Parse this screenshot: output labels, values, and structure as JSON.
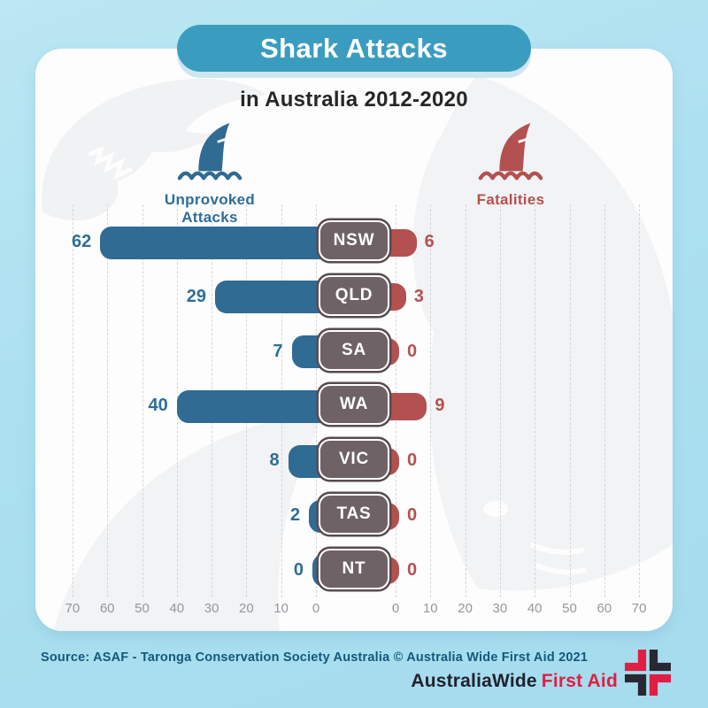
{
  "page": {
    "title_banner": "Shark Attacks",
    "subtitle": "in Australia 2012-2020",
    "source": "Source: ASAF - Taronga Conservation Society Australia © Australia Wide First Aid 2021",
    "logo": {
      "brand": "AustraliaWide",
      "accent": "First Aid"
    }
  },
  "legend": {
    "attacks_label": "Unprovoked Attacks",
    "fatalities_label": "Fatalities"
  },
  "colors": {
    "attacks_blue": "#2f6b93",
    "attacks_text_blue": "#2d6e98",
    "fatalities_red": "#b35150",
    "fatalities_text_red": "#b5514f",
    "state_box_fill": "#6e6266",
    "state_box_ring": "#584b50",
    "banner_teal": "#3a9dc0",
    "background_blue": "#ace0f0",
    "gridline_gray": "#d6d6da",
    "axis_text_gray": "#97979d",
    "source_text": "#15587c",
    "logo_dark": "#20222f",
    "logo_red": "#e01e43"
  },
  "chart_data": {
    "type": "bar",
    "variant": "diverging-horizontal",
    "title": "Shark Attacks in Australia 2012-2020",
    "categories": [
      "NSW",
      "QLD",
      "SA",
      "WA",
      "VIC",
      "TAS",
      "NT"
    ],
    "series": [
      {
        "name": "Unprovoked Attacks",
        "side": "left",
        "values": [
          62,
          29,
          7,
          40,
          8,
          2,
          0
        ]
      },
      {
        "name": "Fatalities",
        "side": "right",
        "values": [
          6,
          3,
          0,
          9,
          0,
          0,
          0
        ]
      }
    ],
    "axis": {
      "left_ticks": [
        70,
        60,
        50,
        40,
        30,
        20,
        10,
        0
      ],
      "right_ticks": [
        0,
        10,
        20,
        30,
        40,
        50,
        60,
        70
      ],
      "max": 70,
      "gridlines": "dashed-vertical"
    },
    "legend_position": "top",
    "data_labels": "at-bar-ends"
  }
}
